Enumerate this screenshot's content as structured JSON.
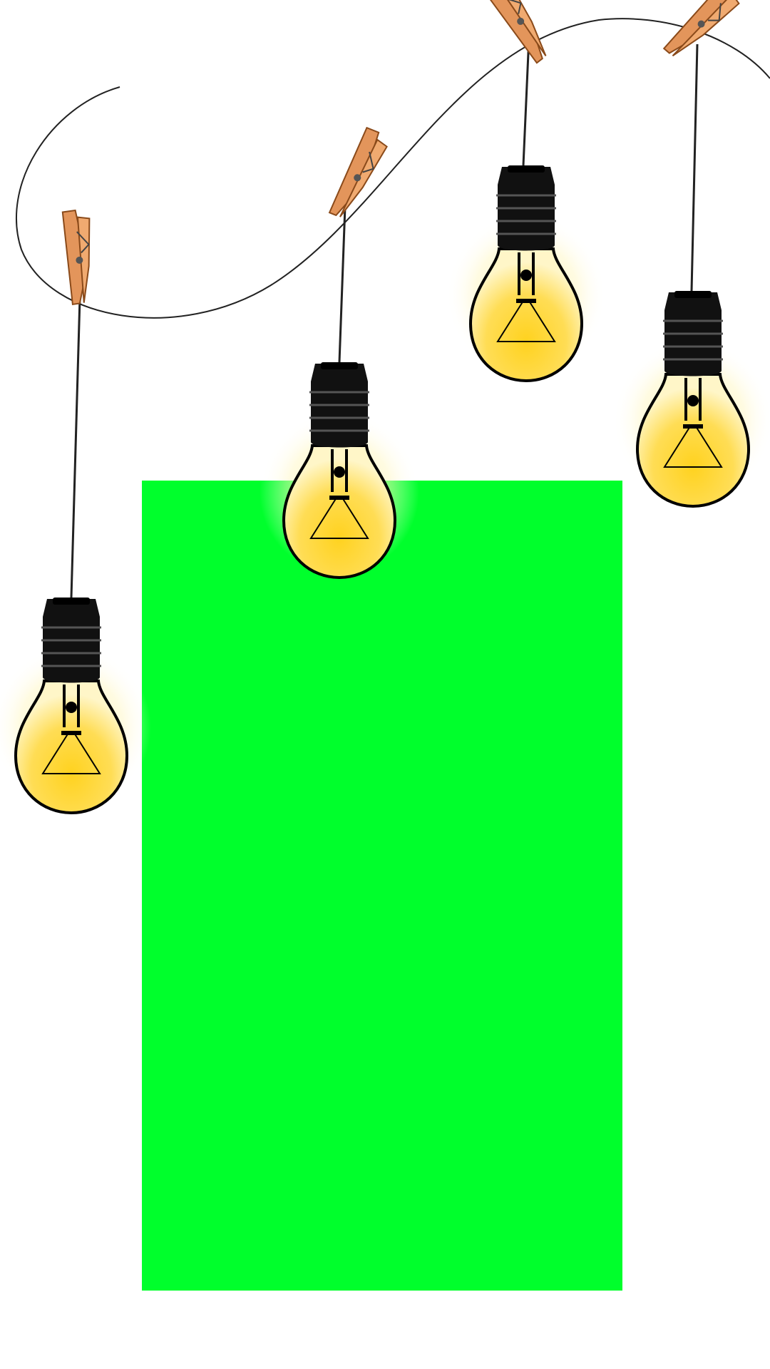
{
  "scene": {
    "background_color": "#ffffff",
    "panel_color": "#00ff2c",
    "bulb_color": "#ffd93a",
    "bulb_glow_color": "#fff1a0",
    "socket_color": "#111111",
    "clothespin_color": "#e3955b",
    "wire_color": "#222222",
    "bulb_count": 5,
    "clothespin_count": 5
  }
}
